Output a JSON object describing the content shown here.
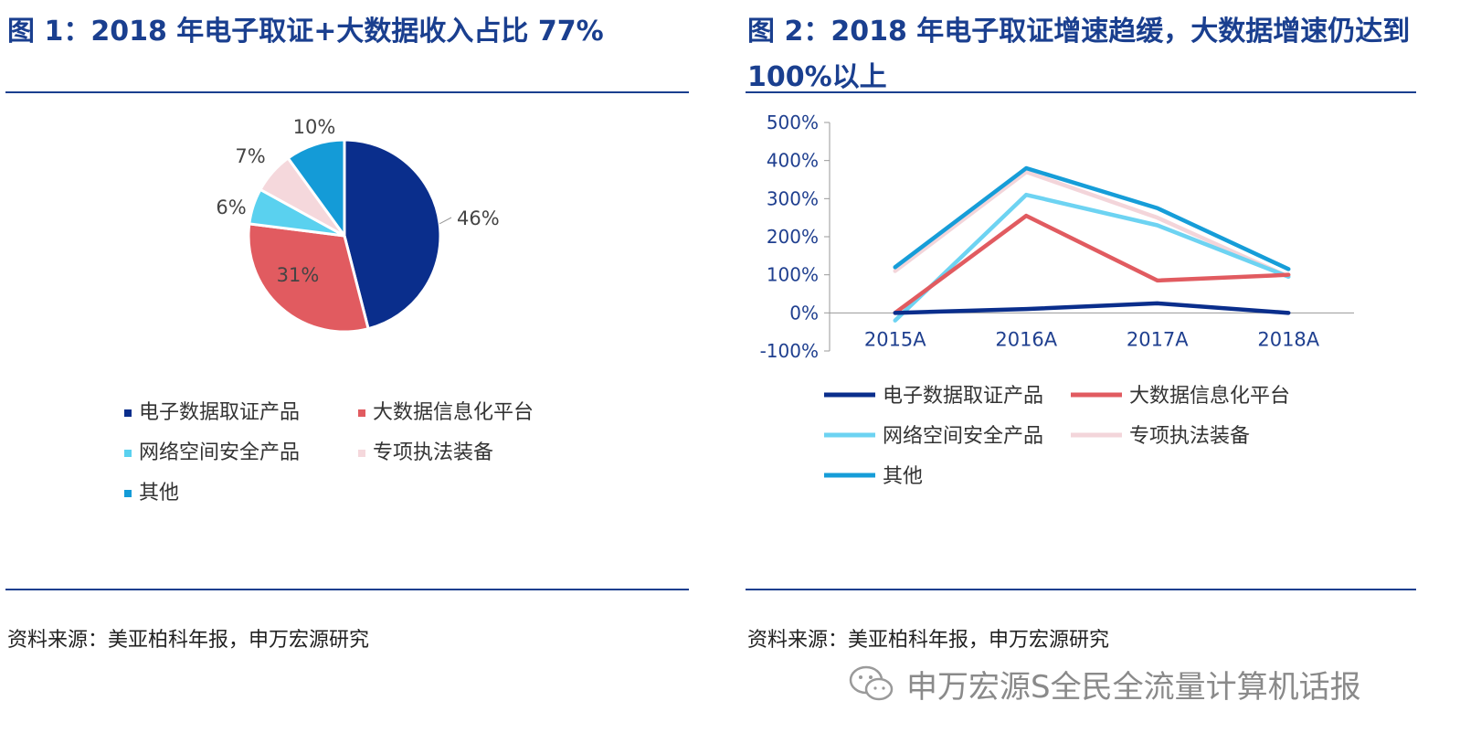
{
  "left": {
    "title": "图 1：2018 年电子取证+大数据收入占比 77%",
    "source": "资料来源：美亚柏科年报，申万宏源研究"
  },
  "right": {
    "title": "图 2：2018 年电子取证增速趋缓，大数据增速仍达到 100%以上",
    "source": "资料来源：美亚柏科年报，申万宏源研究"
  },
  "watermark": {
    "text": "申万宏源S全民全流量计算机话报",
    "icon": "wechat-icon"
  },
  "chart_data": [
    {
      "type": "pie",
      "categories": [
        "电子数据取证产品",
        "大数据信息化平台",
        "网络空间安全产品",
        "专项执法装备",
        "其他"
      ],
      "values": [
        46,
        31,
        6,
        7,
        10
      ],
      "labels": [
        "46%",
        "31%",
        "6%",
        "7%",
        "10%"
      ],
      "colors": [
        "#0a2e8c",
        "#e15b60",
        "#5ad1ef",
        "#f5d8dc",
        "#149bd7"
      ],
      "legend": "bottom"
    },
    {
      "type": "line",
      "categories": [
        "2015A",
        "2016A",
        "2017A",
        "2018A"
      ],
      "series": [
        {
          "name": "电子数据取证产品",
          "values": [
            0,
            10,
            25,
            0
          ],
          "color": "#0a2e8c"
        },
        {
          "name": "大数据信息化平台",
          "values": [
            0,
            255,
            85,
            100
          ],
          "color": "#e15b60"
        },
        {
          "name": "网络空间安全产品",
          "values": [
            -20,
            310,
            230,
            95
          ],
          "color": "#6dd3f2"
        },
        {
          "name": "专项执法装备",
          "values": [
            110,
            370,
            250,
            95
          ],
          "color": "#f3d5da"
        },
        {
          "name": "其他",
          "values": [
            120,
            380,
            275,
            115
          ],
          "color": "#169dd8"
        }
      ],
      "ylim": [
        -100,
        500
      ],
      "yticks": [
        "-100%",
        "0%",
        "100%",
        "200%",
        "300%",
        "400%",
        "500%"
      ],
      "ytick_values": [
        -100,
        0,
        100,
        200,
        300,
        400,
        500
      ],
      "legend": "bottom"
    }
  ]
}
